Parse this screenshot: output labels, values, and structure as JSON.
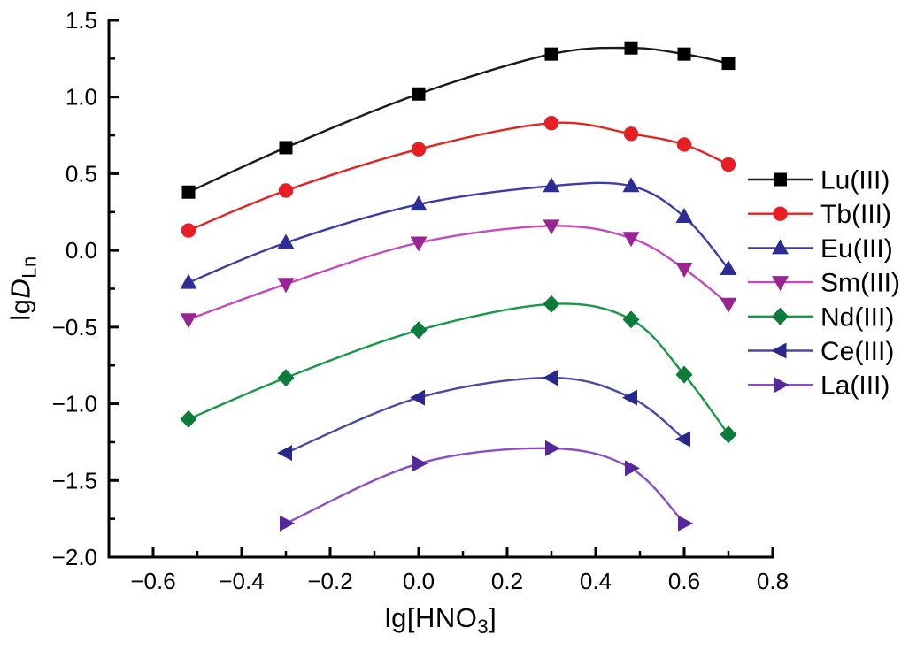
{
  "figure": {
    "background": "#ffffff",
    "axis_color": "#000000",
    "text_color": "#000000"
  },
  "axes": {
    "x": {
      "title_prefix": "lg[HNO",
      "title_sub": "3",
      "title_suffix": "]",
      "tick_labels": [
        "−0.6",
        "−0.4",
        "−0.2",
        "0.0",
        "0.2",
        "0.4",
        "0.6",
        "0.8"
      ]
    },
    "y": {
      "title_prefix": "lg",
      "title_italic": "D",
      "title_sub": "Ln",
      "tick_labels": [
        "1.5",
        "1.0",
        "0.5",
        "0.0",
        "−0.5",
        "−1.0",
        "−1.5",
        "−2.0"
      ]
    }
  },
  "chart_data": {
    "type": "line",
    "title": "",
    "xlabel": "lg[HNO3]",
    "ylabel": "lgD_Ln",
    "xlim": [
      -0.7,
      0.8
    ],
    "ylim": [
      -2.0,
      1.5
    ],
    "x_ticks": [
      -0.6,
      -0.4,
      -0.2,
      0.0,
      0.2,
      0.4,
      0.6,
      0.8
    ],
    "x_minor_ticks": [
      -0.5,
      -0.3,
      -0.1,
      0.1,
      0.3,
      0.5,
      0.7
    ],
    "y_ticks": [
      1.5,
      1.0,
      0.5,
      0.0,
      -0.5,
      -1.0,
      -1.5,
      -2.0
    ],
    "y_minor_ticks": [
      1.25,
      0.75,
      0.25,
      -0.25,
      -0.75,
      -1.25,
      -1.75
    ],
    "grid": false,
    "legend_position": "right",
    "series": [
      {
        "name": "Lu(III)",
        "marker": "square",
        "line_color": "#1a1a1a",
        "marker_color": "#000000",
        "x": [
          -0.52,
          -0.3,
          0.0,
          0.3,
          0.48,
          0.6,
          0.7
        ],
        "y": [
          0.38,
          0.67,
          1.02,
          1.28,
          1.32,
          1.28,
          1.22
        ]
      },
      {
        "name": "Tb(III)",
        "marker": "circle",
        "line_color": "#e22420",
        "marker_color": "#e81e25",
        "x": [
          -0.52,
          -0.3,
          0.0,
          0.3,
          0.48,
          0.6,
          0.7
        ],
        "y": [
          0.13,
          0.39,
          0.66,
          0.83,
          0.76,
          0.69,
          0.56
        ]
      },
      {
        "name": "Eu(III)",
        "marker": "triangle-up",
        "line_color": "#3c3ca8",
        "marker_color": "#2d2d96",
        "x": [
          -0.52,
          -0.3,
          0.0,
          0.3,
          0.48,
          0.6,
          0.7
        ],
        "y": [
          -0.21,
          0.05,
          0.3,
          0.42,
          0.42,
          0.22,
          -0.12
        ]
      },
      {
        "name": "Sm(III)",
        "marker": "triangle-down",
        "line_color": "#c44cba",
        "marker_color": "#9b2494",
        "x": [
          -0.52,
          -0.3,
          0.0,
          0.3,
          0.48,
          0.6,
          0.7
        ],
        "y": [
          -0.45,
          -0.22,
          0.05,
          0.16,
          0.08,
          -0.12,
          -0.35
        ]
      },
      {
        "name": "Nd(III)",
        "marker": "diamond",
        "line_color": "#169a46",
        "marker_color": "#0d7c3a",
        "x": [
          -0.52,
          -0.3,
          0.0,
          0.3,
          0.48,
          0.6,
          0.7
        ],
        "y": [
          -1.1,
          -0.83,
          -0.52,
          -0.35,
          -0.45,
          -0.81,
          -1.2
        ]
      },
      {
        "name": "Ce(III)",
        "marker": "triangle-left",
        "line_color": "#4a4aa2",
        "marker_color": "#28288c",
        "x": [
          -0.3,
          0.0,
          0.3,
          0.48,
          0.6
        ],
        "y": [
          -1.32,
          -0.96,
          -0.83,
          -0.96,
          -1.23
        ]
      },
      {
        "name": "La(III)",
        "marker": "triangle-right",
        "line_color": "#8a4ec6",
        "marker_color": "#55289b",
        "x": [
          -0.3,
          0.0,
          0.3,
          0.48,
          0.6
        ],
        "y": [
          -1.78,
          -1.39,
          -1.29,
          -1.42,
          -1.78
        ]
      }
    ]
  }
}
